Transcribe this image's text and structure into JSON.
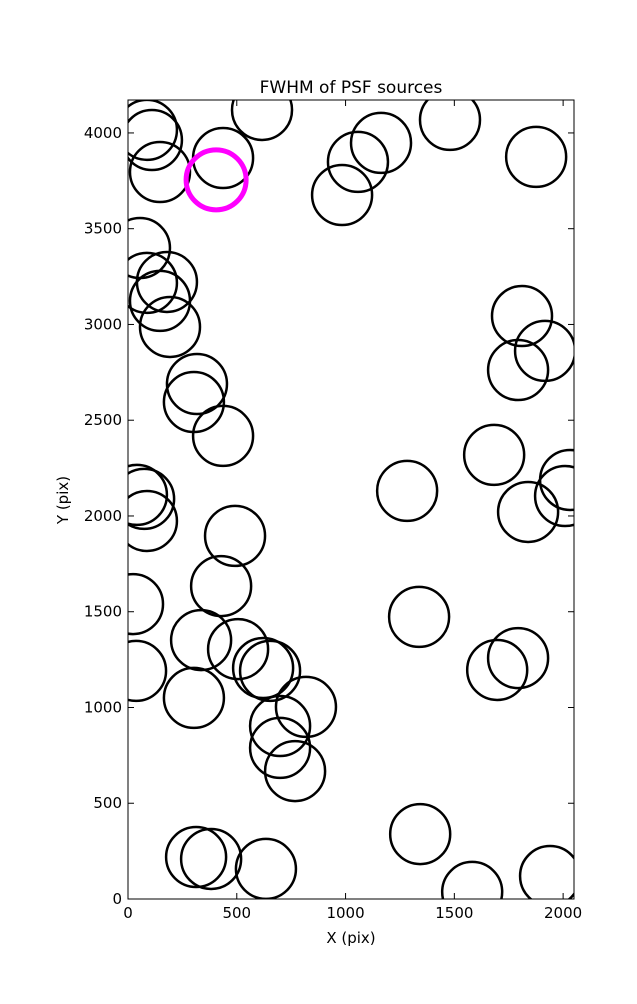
{
  "chart_data": {
    "type": "scatter",
    "title": "FWHM of PSF sources",
    "xlabel": "X (pix)",
    "ylabel": "Y (pix)",
    "xlim": [
      0,
      2050
    ],
    "ylim": [
      0,
      4172
    ],
    "xticks": [
      0,
      500,
      1000,
      1500,
      2000
    ],
    "yticks": [
      0,
      500,
      1000,
      1500,
      2000,
      2500,
      3000,
      3500,
      4000
    ],
    "series": [
      {
        "color": "#000000",
        "x": [
          87,
          110,
          147,
          616,
          437,
          1163,
          1057,
          984,
          1480,
          1876,
          55,
          87,
          179,
          147,
          193,
          1811,
          1917,
          1793,
          317,
          303,
          437,
          1683,
          2032,
          2009,
          1283,
          1839,
          41,
          74,
          87,
          492,
          428,
          23,
          1338,
          336,
          506,
          1793,
          621,
          653,
          1697,
          37,
          303,
          818,
          699,
          699,
          768,
          1343,
          313,
          382,
          634,
          1582,
          1940
        ],
        "y": [
          4016,
          3963,
          3796,
          4120,
          3869,
          3948,
          3849,
          3676,
          4068,
          3875,
          3399,
          3217,
          3222,
          3123,
          2987,
          3044,
          2862,
          2762,
          2689,
          2595,
          2418,
          2319,
          2188,
          2104,
          2131,
          2021,
          2110,
          2089,
          1974,
          1896,
          1634,
          1540,
          1473,
          1352,
          1305,
          1258,
          1206,
          1191,
          1196,
          1191,
          1050,
          1003,
          903,
          789,
          668,
          339,
          219,
          209,
          157,
          37,
          120
        ]
      },
      {
        "color": "#ff00ff",
        "x": [
          405
        ],
        "y": [
          3755
        ]
      }
    ]
  }
}
